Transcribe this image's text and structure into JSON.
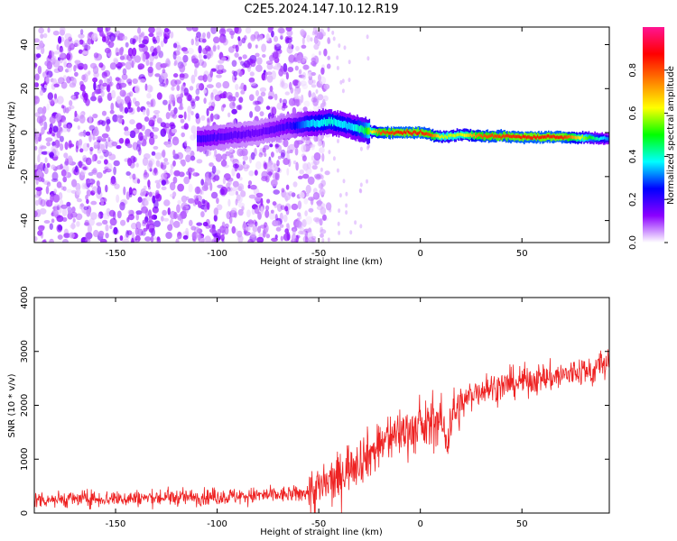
{
  "figure": {
    "title": "C2E5.2024.147.10.12.R19"
  },
  "chart_data": [
    {
      "type": "heatmap",
      "title": "",
      "xlabel": "Height of straight line (km)",
      "ylabel": "Frequency (Hz)",
      "xlim": [
        -190,
        93
      ],
      "ylim": [
        -50,
        48
      ],
      "xticks": [
        -150,
        -100,
        -50,
        0,
        50
      ],
      "yticks": [
        -40,
        -20,
        0,
        20,
        40
      ],
      "grid": false,
      "colorbar": {
        "label": "Normalized spectral amplitude",
        "range": [
          0,
          1
        ],
        "ticks": [
          0.0,
          0.2,
          0.4,
          0.6,
          0.8
        ],
        "colors": [
          "#ffffff",
          "#8b00ff",
          "#0000ff",
          "#00ffff",
          "#00ff00",
          "#ffff00",
          "#ff7f00",
          "#ff0000",
          "#ff1493"
        ]
      },
      "noise_region": {
        "x": [
          -190,
          -55
        ],
        "y": [
          -50,
          48
        ],
        "typical_amplitude": 0.1
      },
      "ridge": [
        {
          "x": -110,
          "freq": -3,
          "amp": 0.2
        },
        {
          "x": -80,
          "freq": 0,
          "amp": 0.15
        },
        {
          "x": -65,
          "freq": 3,
          "amp": 0.2
        },
        {
          "x": -55,
          "freq": 4,
          "amp": 0.35
        },
        {
          "x": -45,
          "freq": 5,
          "amp": 0.4
        },
        {
          "x": -35,
          "freq": 3,
          "amp": 0.35
        },
        {
          "x": -28,
          "freq": 1,
          "amp": 0.45
        },
        {
          "x": -20,
          "freq": 0,
          "amp": 0.8
        },
        {
          "x": -10,
          "freq": 0,
          "amp": 0.85
        },
        {
          "x": 0,
          "freq": 0,
          "amp": 0.85
        },
        {
          "x": 5,
          "freq": -1,
          "amp": 0.8
        },
        {
          "x": 10,
          "freq": -2,
          "amp": 0.6
        },
        {
          "x": 20,
          "freq": -1,
          "amp": 0.6
        },
        {
          "x": 30,
          "freq": -1.5,
          "amp": 0.8
        },
        {
          "x": 50,
          "freq": -2,
          "amp": 0.85
        },
        {
          "x": 70,
          "freq": -2,
          "amp": 0.85
        },
        {
          "x": 85,
          "freq": -2.5,
          "amp": 0.45
        },
        {
          "x": 93,
          "freq": -3,
          "amp": 0.3
        }
      ]
    },
    {
      "type": "line",
      "title": "",
      "xlabel": "Height of straight line (km)",
      "ylabel": "SNR (10 * v/v)",
      "xlim": [
        -190,
        93
      ],
      "ylim": [
        0,
        4000
      ],
      "xticks": [
        -150,
        -100,
        -50,
        0,
        50
      ],
      "yticks": [
        0,
        1000,
        2000,
        3000,
        4000
      ],
      "grid": false,
      "series": [
        {
          "color": "#ee2222",
          "x": [
            -190,
            -150,
            -100,
            -60,
            -50,
            -45,
            -40,
            -35,
            -30,
            -25,
            -20,
            -15,
            -10,
            -5,
            0,
            5,
            10,
            13,
            15,
            20,
            25,
            30,
            40,
            50,
            60,
            70,
            80,
            85,
            88,
            90,
            93
          ],
          "y": [
            250,
            270,
            300,
            350,
            450,
            550,
            650,
            900,
            1000,
            1100,
            1250,
            1400,
            1500,
            1550,
            1550,
            1650,
            1750,
            1300,
            1800,
            2000,
            2200,
            2300,
            2350,
            2450,
            2500,
            2550,
            2650,
            2600,
            2750,
            2800,
            2700
          ]
        }
      ]
    }
  ]
}
